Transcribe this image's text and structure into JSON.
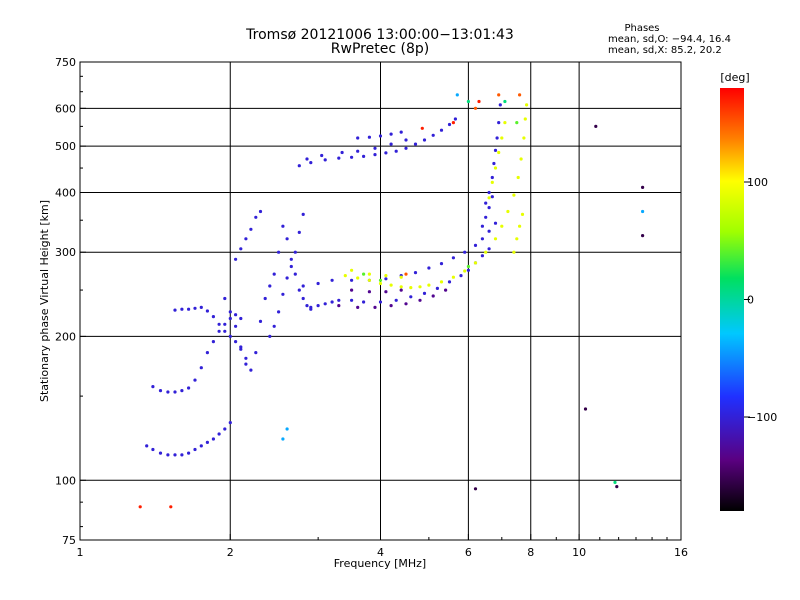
{
  "title": "Tromsø 20121006 13:00:00−13:01:43",
  "subtitle": "RwPretec (8p)",
  "phases": {
    "heading": "Phases",
    "line_o": "mean, sd,O: −94.4, 16.4",
    "line_x": "mean, sd,X:  85.2, 20.2"
  },
  "colorbar": {
    "label": "[deg]",
    "ticks": [
      {
        "value": 100,
        "label": "100"
      },
      {
        "value": 0,
        "label": "0"
      },
      {
        "value": -100,
        "label": "−100"
      }
    ],
    "range": [
      -180,
      180
    ]
  },
  "chart_data": {
    "type": "scatter",
    "title": "Tromsø 20121006 13:00:00−13:01:43",
    "subtitle": "RwPretec (8p)",
    "xlabel": "Frequency [MHz]",
    "ylabel": "Stationary phase Virtual Height [km]",
    "xscale": "log",
    "yscale": "log",
    "xlim": [
      1,
      16
    ],
    "ylim": [
      75,
      750
    ],
    "xticks": [
      1,
      2,
      4,
      6,
      8,
      10,
      16
    ],
    "yticks": [
      75,
      100,
      200,
      300,
      400,
      500,
      600,
      750
    ],
    "xgrid": [
      2,
      4,
      6,
      8,
      10
    ],
    "ygrid": [
      100,
      200,
      300,
      400,
      500,
      600
    ],
    "color_scale": "phase in degrees, rainbow from black (−180) through violet, blue, cyan, green, yellow to red (180)",
    "series": [
      {
        "phase": -100,
        "points": [
          [
            1.36,
            118
          ],
          [
            1.4,
            116
          ],
          [
            1.45,
            114
          ],
          [
            1.5,
            113
          ],
          [
            1.55,
            113
          ],
          [
            1.6,
            113
          ],
          [
            1.65,
            114
          ],
          [
            1.7,
            116
          ],
          [
            1.75,
            118
          ],
          [
            1.8,
            120
          ],
          [
            1.85,
            122
          ],
          [
            1.9,
            125
          ],
          [
            1.95,
            128
          ],
          [
            2.0,
            132
          ],
          [
            1.4,
            157
          ],
          [
            1.45,
            154
          ],
          [
            1.5,
            153
          ],
          [
            1.55,
            153
          ],
          [
            1.6,
            154
          ],
          [
            1.65,
            156
          ],
          [
            1.7,
            162
          ],
          [
            1.75,
            172
          ],
          [
            1.8,
            185
          ],
          [
            1.85,
            195
          ],
          [
            1.9,
            205
          ],
          [
            1.95,
            212
          ],
          [
            2.0,
            218
          ],
          [
            2.05,
            222
          ],
          [
            2.1,
            218
          ],
          [
            1.55,
            227
          ],
          [
            1.6,
            228
          ],
          [
            1.65,
            228
          ],
          [
            1.7,
            229
          ],
          [
            1.75,
            230
          ],
          [
            1.8,
            226
          ],
          [
            1.85,
            220
          ],
          [
            1.9,
            212
          ],
          [
            1.95,
            205
          ],
          [
            2.0,
            200
          ],
          [
            2.05,
            195
          ],
          [
            2.1,
            188
          ],
          [
            2.15,
            180
          ],
          [
            1.95,
            240
          ],
          [
            2.0,
            225
          ],
          [
            2.05,
            210
          ],
          [
            2.1,
            190
          ],
          [
            2.15,
            175
          ],
          [
            2.2,
            170
          ],
          [
            2.25,
            185
          ],
          [
            2.3,
            215
          ],
          [
            2.35,
            240
          ],
          [
            2.4,
            255
          ],
          [
            2.45,
            270
          ],
          [
            2.5,
            300
          ],
          [
            2.55,
            340
          ],
          [
            2.6,
            320
          ],
          [
            2.65,
            290
          ],
          [
            2.7,
            270
          ],
          [
            2.75,
            250
          ],
          [
            2.8,
            240
          ],
          [
            2.85,
            232
          ],
          [
            2.9,
            228
          ],
          [
            2.4,
            200
          ],
          [
            2.45,
            210
          ],
          [
            2.5,
            225
          ],
          [
            2.55,
            245
          ],
          [
            2.6,
            265
          ],
          [
            2.65,
            280
          ],
          [
            2.7,
            300
          ],
          [
            2.75,
            330
          ],
          [
            2.8,
            360
          ],
          [
            2.05,
            290
          ],
          [
            2.1,
            305
          ],
          [
            2.15,
            320
          ],
          [
            2.2,
            335
          ],
          [
            2.25,
            355
          ],
          [
            2.3,
            365
          ],
          [
            2.9,
            230
          ],
          [
            3.0,
            232
          ],
          [
            3.1,
            234
          ],
          [
            3.2,
            236
          ],
          [
            3.3,
            238
          ],
          [
            3.5,
            238
          ],
          [
            3.7,
            236
          ],
          [
            4.0,
            236
          ],
          [
            4.3,
            238
          ],
          [
            4.6,
            242
          ],
          [
            4.9,
            246
          ],
          [
            5.2,
            252
          ],
          [
            5.5,
            260
          ],
          [
            5.8,
            268
          ],
          [
            6.0,
            275
          ],
          [
            6.2,
            285
          ],
          [
            6.4,
            295
          ],
          [
            6.6,
            305
          ],
          [
            2.8,
            255
          ],
          [
            3.0,
            258
          ],
          [
            3.2,
            262
          ],
          [
            3.5,
            262
          ],
          [
            3.8,
            262
          ],
          [
            4.1,
            264
          ],
          [
            4.4,
            268
          ],
          [
            4.7,
            272
          ],
          [
            5.0,
            278
          ],
          [
            5.3,
            284
          ],
          [
            5.6,
            292
          ],
          [
            5.9,
            300
          ],
          [
            6.2,
            310
          ],
          [
            6.4,
            320
          ],
          [
            6.6,
            332
          ],
          [
            6.8,
            345
          ],
          [
            2.75,
            455
          ],
          [
            2.9,
            462
          ],
          [
            3.1,
            468
          ],
          [
            3.3,
            472
          ],
          [
            3.5,
            474
          ],
          [
            3.7,
            476
          ],
          [
            3.9,
            480
          ],
          [
            4.1,
            484
          ],
          [
            4.3,
            488
          ],
          [
            4.5,
            495
          ],
          [
            4.7,
            505
          ],
          [
            4.9,
            515
          ],
          [
            5.1,
            527
          ],
          [
            5.3,
            540
          ],
          [
            5.5,
            555
          ],
          [
            5.65,
            570
          ],
          [
            2.85,
            470
          ],
          [
            3.05,
            478
          ],
          [
            3.35,
            485
          ],
          [
            3.6,
            488
          ],
          [
            3.9,
            495
          ],
          [
            4.2,
            505
          ],
          [
            4.5,
            515
          ],
          [
            3.6,
            520
          ],
          [
            3.8,
            522
          ],
          [
            4.0,
            525
          ],
          [
            4.2,
            530
          ],
          [
            4.4,
            535
          ],
          [
            6.5,
            380
          ],
          [
            6.6,
            400
          ],
          [
            6.7,
            430
          ],
          [
            6.75,
            460
          ],
          [
            6.8,
            490
          ],
          [
            6.85,
            520
          ],
          [
            6.9,
            560
          ],
          [
            6.95,
            610
          ],
          [
            6.4,
            340
          ],
          [
            6.5,
            355
          ],
          [
            6.6,
            372
          ],
          [
            6.7,
            392
          ]
        ]
      },
      {
        "phase": -130,
        "points": [
          [
            3.3,
            232
          ],
          [
            3.6,
            230
          ],
          [
            3.9,
            230
          ],
          [
            4.2,
            232
          ],
          [
            4.5,
            234
          ],
          [
            4.8,
            238
          ],
          [
            5.1,
            243
          ],
          [
            5.4,
            250
          ],
          [
            3.5,
            250
          ],
          [
            3.8,
            248
          ],
          [
            4.1,
            248
          ],
          [
            4.4,
            250
          ]
        ]
      },
      {
        "phase": 90,
        "points": [
          [
            3.4,
            268
          ],
          [
            3.6,
            265
          ],
          [
            3.8,
            262
          ],
          [
            4.0,
            258
          ],
          [
            4.2,
            256
          ],
          [
            4.4,
            254
          ],
          [
            4.6,
            253
          ],
          [
            4.8,
            254
          ],
          [
            5.0,
            256
          ],
          [
            5.3,
            260
          ],
          [
            5.6,
            266
          ],
          [
            5.9,
            274
          ],
          [
            6.2,
            285
          ],
          [
            6.5,
            300
          ],
          [
            6.8,
            320
          ],
          [
            7.0,
            340
          ],
          [
            7.2,
            365
          ],
          [
            7.4,
            395
          ],
          [
            7.55,
            430
          ],
          [
            7.65,
            470
          ],
          [
            7.75,
            520
          ],
          [
            7.8,
            570
          ],
          [
            7.85,
            610
          ],
          [
            3.5,
            275
          ],
          [
            3.8,
            270
          ],
          [
            4.1,
            268
          ],
          [
            4.4,
            266
          ],
          [
            6.6,
            390
          ],
          [
            6.7,
            420
          ],
          [
            6.8,
            450
          ],
          [
            6.9,
            485
          ],
          [
            7.0,
            520
          ],
          [
            7.1,
            560
          ],
          [
            7.4,
            300
          ],
          [
            7.5,
            320
          ],
          [
            7.6,
            340
          ],
          [
            7.7,
            360
          ]
        ]
      },
      {
        "phase": 40,
        "points": [
          [
            3.7,
            270
          ],
          [
            4.0,
            262
          ],
          [
            6.0,
            280
          ],
          [
            7.5,
            560
          ]
        ]
      },
      {
        "phase": 150,
        "points": [
          [
            4.5,
            270
          ],
          [
            6.2,
            600
          ],
          [
            6.9,
            640
          ],
          [
            7.6,
            640
          ]
        ]
      },
      {
        "phase": 170,
        "points": [
          [
            1.32,
            88
          ],
          [
            1.52,
            88
          ],
          [
            4.85,
            545
          ],
          [
            5.6,
            560
          ],
          [
            6.3,
            620
          ]
        ]
      },
      {
        "phase": 10,
        "points": [
          [
            7.1,
            620
          ],
          [
            11.8,
            99
          ],
          [
            6.0,
            620
          ]
        ]
      },
      {
        "phase": -155,
        "points": [
          [
            6.2,
            96
          ],
          [
            13.4,
            325
          ],
          [
            13.4,
            410
          ],
          [
            11.9,
            97
          ],
          [
            10.8,
            550
          ],
          [
            10.3,
            141
          ]
        ]
      },
      {
        "phase": -40,
        "points": [
          [
            2.55,
            122
          ],
          [
            2.6,
            128
          ],
          [
            5.7,
            640
          ],
          [
            13.4,
            365
          ]
        ]
      }
    ]
  }
}
